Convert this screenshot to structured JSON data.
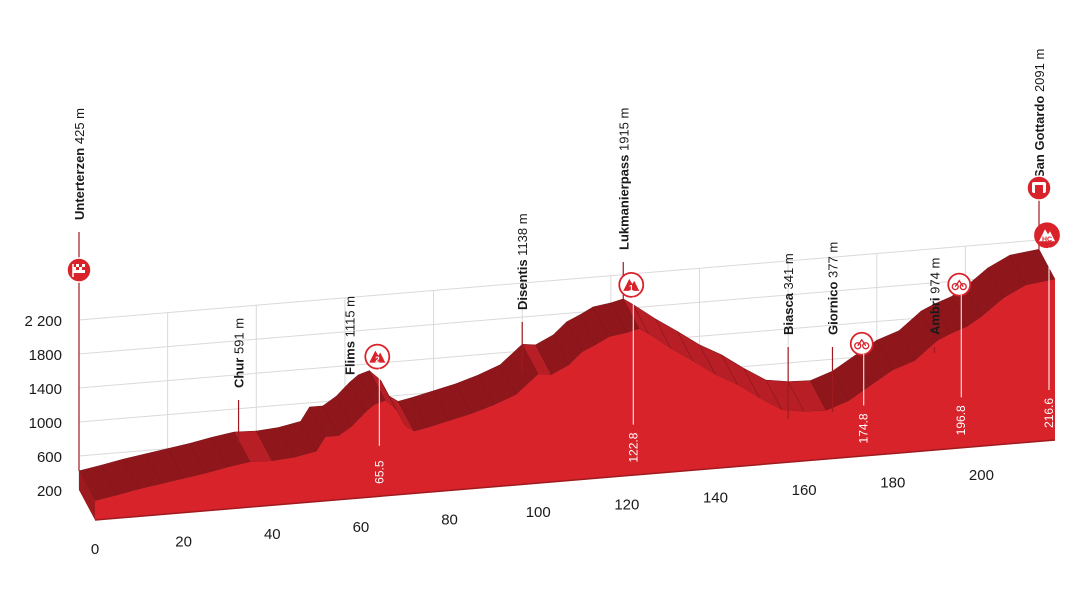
{
  "chart_data": {
    "type": "area",
    "title": "",
    "xlabel": "",
    "ylabel": "",
    "x_unit": "km",
    "y_unit": "m",
    "xlim": [
      0,
      216.6
    ],
    "ylim": [
      200,
      2200
    ],
    "x_ticks": [
      {
        "value": 0,
        "label": "0"
      },
      {
        "value": 20,
        "label": "20"
      },
      {
        "value": 40,
        "label": "40"
      },
      {
        "value": 60,
        "label": "60"
      },
      {
        "value": 80,
        "label": "80"
      },
      {
        "value": 100,
        "label": "100"
      },
      {
        "value": 120,
        "label": "120"
      },
      {
        "value": 140,
        "label": "140"
      },
      {
        "value": 160,
        "label": "160"
      },
      {
        "value": 180,
        "label": "180"
      },
      {
        "value": 200,
        "label": "200"
      }
    ],
    "y_ticks": [
      {
        "value": 200,
        "label": "200"
      },
      {
        "value": 600,
        "label": "600"
      },
      {
        "value": 1000,
        "label": "1000"
      },
      {
        "value": 1400,
        "label": "1400"
      },
      {
        "value": 1800,
        "label": "1800"
      },
      {
        "value": 2200,
        "label": "2 200"
      }
    ],
    "profile": {
      "x": [
        0,
        5,
        10,
        15,
        20,
        25,
        30,
        35,
        40,
        45,
        50,
        52,
        55,
        58,
        61,
        63,
        65.5,
        68,
        70,
        72,
        75,
        80,
        85,
        90,
        95,
        100,
        103,
        107,
        110,
        113,
        116,
        120,
        122.8,
        125,
        130,
        135,
        140,
        145,
        150,
        155,
        160,
        165,
        170,
        175,
        180,
        185,
        190,
        193,
        196.8,
        200,
        205,
        210,
        216.6
      ],
      "y": [
        425,
        470,
        520,
        560,
        600,
        640,
        690,
        730,
        720,
        740,
        790,
        950,
        950,
        1050,
        1200,
        1280,
        1320,
        1200,
        1000,
        930,
        960,
        1020,
        1080,
        1160,
        1260,
        1480,
        1460,
        1560,
        1700,
        1770,
        1850,
        1880,
        1915,
        1840,
        1650,
        1480,
        1300,
        1160,
        980,
        820,
        780,
        770,
        860,
        1020,
        1180,
        1270,
        1480,
        1550,
        1620,
        1720,
        1920,
        2050,
        2091
      ]
    },
    "places": [
      {
        "name": "Unterterzen",
        "alt": "425 m",
        "x": 0,
        "y": 425,
        "icon": "start-flag-icon"
      },
      {
        "name": "Chur",
        "alt": "591 m",
        "x": 36,
        "y": 591
      },
      {
        "name": "Flims",
        "alt": "1115 m",
        "x": 61,
        "y": 1115
      },
      {
        "name": "Disentis",
        "alt": "1138 m",
        "x": 100,
        "y": 1138
      },
      {
        "name": "Lukmanierpass",
        "alt": "1915 m",
        "x": 122.8,
        "y": 1915
      },
      {
        "name": "Biasca",
        "alt": "341 m",
        "x": 160,
        "y": 341
      },
      {
        "name": "Giornico",
        "alt": "377 m",
        "x": 170,
        "y": 377
      },
      {
        "name": "Ambri",
        "alt": "974 m",
        "x": 193,
        "y": 974
      },
      {
        "name": "San Gottardo",
        "alt": "2091 m",
        "x": 216.6,
        "y": 2091,
        "icon": "finish-icon"
      }
    ],
    "markers": [
      {
        "km": 65.5,
        "label": "65.5",
        "icon": "mountain-cat2-icon",
        "badge": "2",
        "y": 1320
      },
      {
        "km": 122.8,
        "label": "122.8",
        "icon": "mountain-cat1-icon",
        "badge": "1",
        "y": 1915
      },
      {
        "km": 174.8,
        "label": "174.8",
        "icon": "intermediate-sprint-icon",
        "y": 1020
      },
      {
        "km": 196.8,
        "label": "196.8",
        "icon": "intermediate-sprint-icon",
        "y": 1620
      },
      {
        "km": 216.6,
        "label": "216.6",
        "icon": "mountain-hc-icon",
        "badge": "HC",
        "y": 2091
      }
    ],
    "colors": {
      "profile": "#d9232b",
      "edge": "#9e1a1f",
      "grid": "#d9d9d9",
      "text": "#1a1a1a",
      "marker": "#d9232b"
    }
  }
}
